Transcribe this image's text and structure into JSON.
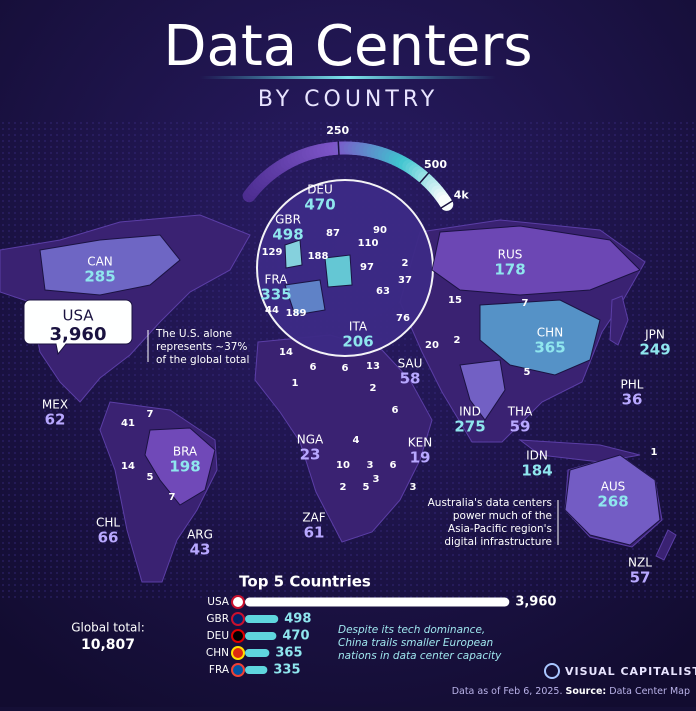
{
  "title": "Data Centers",
  "subtitle": "BY COUNTRY",
  "legend": {
    "lim": [
      0,
      4000
    ],
    "ticks": [
      250,
      500,
      {
        "value": 4000,
        "label": "4k"
      }
    ]
  },
  "countries": [
    {
      "code": "CAN",
      "value": 285
    },
    {
      "code": "USA",
      "value": 3960,
      "value_label": "3,960"
    },
    {
      "code": "MEX",
      "value": 62
    },
    {
      "code": "BRA",
      "value": 198
    },
    {
      "code": "CHL",
      "value": 66
    },
    {
      "code": "ARG",
      "value": 43
    },
    {
      "code": "GBR",
      "value": 498
    },
    {
      "code": "DEU",
      "value": 470
    },
    {
      "code": "FRA",
      "value": 335
    },
    {
      "code": "ITA",
      "value": 206
    },
    {
      "code": "RUS",
      "value": 178
    },
    {
      "code": "SAU",
      "value": 58
    },
    {
      "code": "CHN",
      "value": 365
    },
    {
      "code": "JPN",
      "value": 249
    },
    {
      "code": "IND",
      "value": 275
    },
    {
      "code": "THA",
      "value": 59
    },
    {
      "code": "PHL",
      "value": 36
    },
    {
      "code": "IDN",
      "value": 184
    },
    {
      "code": "NGA",
      "value": 23
    },
    {
      "code": "KEN",
      "value": 19
    },
    {
      "code": "ZAF",
      "value": 61
    },
    {
      "code": "AUS",
      "value": 268
    },
    {
      "code": "NZL",
      "value": 57
    }
  ],
  "other_values": [
    87,
    90,
    110,
    188,
    97,
    2,
    37,
    63,
    76,
    189,
    44,
    129,
    15,
    7,
    20,
    2,
    5,
    14,
    6,
    6,
    13,
    1,
    2,
    6,
    4,
    10,
    3,
    2,
    5,
    3,
    6,
    3,
    41,
    7,
    14,
    5,
    7,
    1
  ],
  "annotations": {
    "usa": [
      "The U.S. alone",
      "represents ~37%",
      "of the global total"
    ],
    "australia": [
      "Australia's data centers",
      "power much of the",
      "Asia-Pacific region's",
      "digital infrastructure"
    ],
    "china": [
      "Despite its tech dominance,",
      "China trails smaller European",
      "nations in data center capacity"
    ]
  },
  "top5": {
    "title": "Top 5 Countries",
    "categories": [
      "USA",
      "GBR",
      "DEU",
      "CHN",
      "FRA"
    ],
    "values": [
      3960,
      498,
      470,
      365,
      335
    ],
    "value_labels": [
      "3,960",
      "498",
      "470",
      "365",
      "335"
    ],
    "xlim": [
      0,
      4000
    ]
  },
  "global_total": {
    "label": "Global total:",
    "value": 10807,
    "value_label": "10,807"
  },
  "brand": "VISUAL CAPITALIST",
  "footer": {
    "text": "Data as of Feb 6, 2025.",
    "source_label": "Source:",
    "source": "Data Center Map"
  }
}
